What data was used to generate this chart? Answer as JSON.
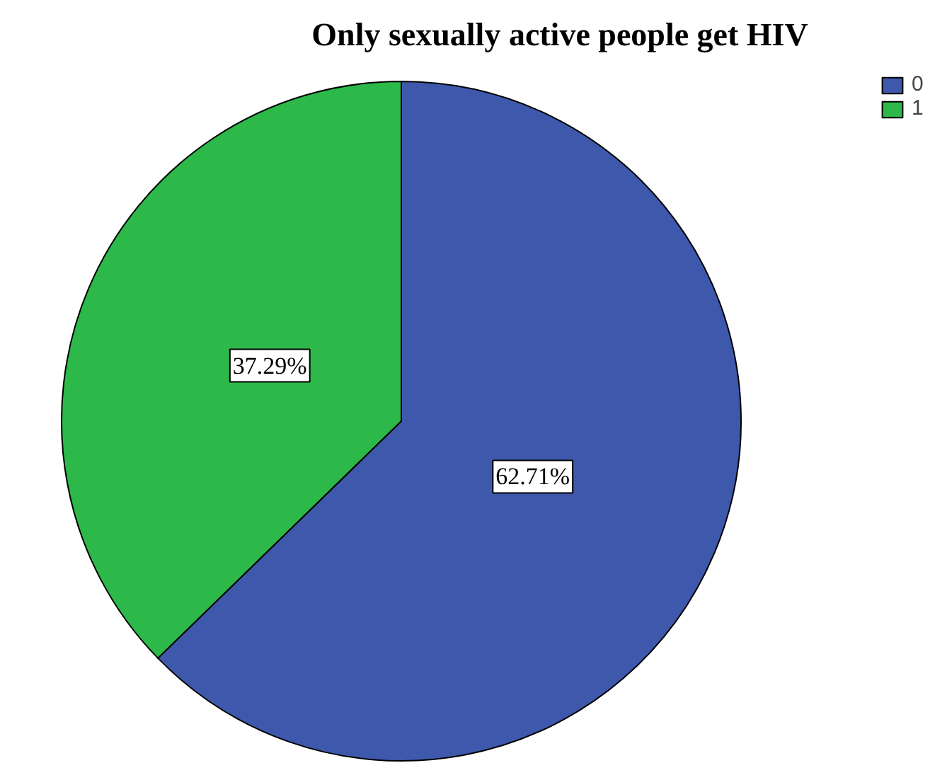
{
  "chart_data": {
    "type": "pie",
    "title": "Only sexually active people get HIV",
    "categories": [
      "0",
      "1"
    ],
    "values": [
      62.71,
      37.29
    ],
    "colors": [
      "#3e58ac",
      "#2db84a"
    ],
    "value_labels": [
      "62.71%",
      "37.29%"
    ],
    "legend": "top right"
  }
}
